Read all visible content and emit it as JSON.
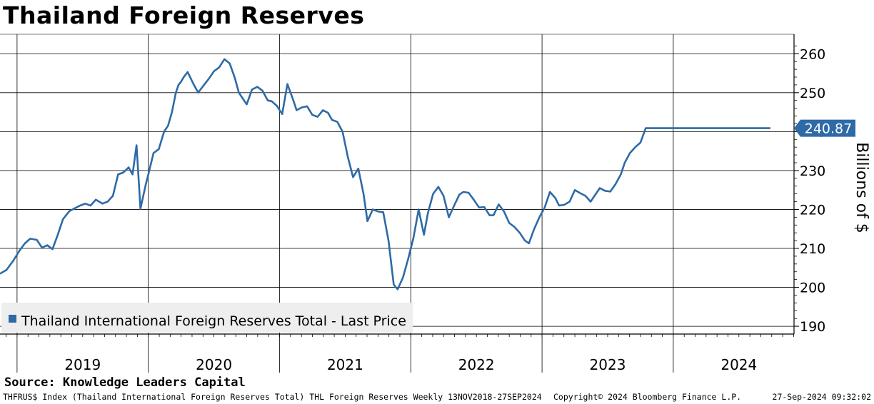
{
  "title": "Thailand Foreign Reserves",
  "source": "Source: Knowledge Leaders Capital",
  "footer": {
    "index_info": "THFRUS$ Index (Thailand International Foreign Reserves Total) THL Foreign Reserves  Weekly 13NOV2018-27SEP2024",
    "copyright": "Copyright© 2024 Bloomberg Finance L.P.",
    "timestamp": "27-Sep-2024 09:32:02"
  },
  "colors": {
    "line": "#2e6aa6",
    "last_price_box": "#2e6aa6",
    "legend_bg": "#eeeeee",
    "grid": "#000000"
  },
  "chart_data": {
    "type": "line",
    "ylabel": "Billions of $",
    "ylim": [
      188,
      265
    ],
    "yticks": [
      190,
      200,
      210,
      220,
      230,
      240,
      250,
      260
    ],
    "x_start": 2018.87,
    "x_end": 2024.92,
    "year_labels": [
      "2019",
      "2020",
      "2021",
      "2022",
      "2023",
      "2024"
    ],
    "last_value_label": "240.87",
    "series": [
      {
        "name": "Thailand International Foreign Reserves Total - Last Price",
        "x": [
          2018.87,
          2018.92,
          2018.97,
          2019.02,
          2019.06,
          2019.1,
          2019.15,
          2019.19,
          2019.23,
          2019.27,
          2019.31,
          2019.35,
          2019.4,
          2019.44,
          2019.48,
          2019.52,
          2019.56,
          2019.6,
          2019.65,
          2019.69,
          2019.73,
          2019.77,
          2019.81,
          2019.85,
          2019.88,
          2019.91,
          2019.94,
          2019.98,
          2020.0,
          2020.04,
          2020.08,
          2020.12,
          2020.15,
          2020.18,
          2020.21,
          2020.23,
          2020.25,
          2020.27,
          2020.3,
          2020.34,
          2020.38,
          2020.42,
          2020.46,
          2020.5,
          2020.54,
          2020.58,
          2020.62,
          2020.66,
          2020.69,
          2020.72,
          2020.75,
          2020.79,
          2020.83,
          2020.87,
          2020.91,
          2020.94,
          2020.98,
          2021.02,
          2021.06,
          2021.1,
          2021.13,
          2021.17,
          2021.21,
          2021.25,
          2021.29,
          2021.33,
          2021.37,
          2021.4,
          2021.44,
          2021.48,
          2021.52,
          2021.56,
          2021.6,
          2021.64,
          2021.67,
          2021.71,
          2021.75,
          2021.79,
          2021.83,
          2021.87,
          2021.9,
          2021.94,
          2021.98,
          2022.02,
          2022.06,
          2022.1,
          2022.13,
          2022.17,
          2022.21,
          2022.25,
          2022.29,
          2022.33,
          2022.37,
          2022.4,
          2022.44,
          2022.48,
          2022.52,
          2022.56,
          2022.6,
          2022.63,
          2022.67,
          2022.71,
          2022.75,
          2022.79,
          2022.83,
          2022.87,
          2022.9,
          2022.94,
          2022.98,
          2023.02,
          2023.06,
          2023.1,
          2023.13,
          2023.17,
          2023.21,
          2023.25,
          2023.29,
          2023.33,
          2023.37,
          2023.4,
          2023.44,
          2023.48,
          2023.52,
          2023.56,
          2023.6,
          2023.63,
          2023.67,
          2023.71,
          2023.75,
          2023.79,
          2023.83,
          2023.87,
          2023.9,
          2023.94,
          2023.98,
          2024.02,
          2024.06,
          2024.1,
          2024.13,
          2024.17,
          2024.21,
          2024.25,
          2024.29,
          2024.33,
          2024.37,
          2024.4,
          2024.44,
          2024.48,
          2024.52,
          2024.56,
          2024.6,
          2024.63,
          2024.67,
          2024.71,
          2024.74
        ],
        "values": [
          203.5,
          204.5,
          206.8,
          209.5,
          211.3,
          212.5,
          212.2,
          210.2,
          210.8,
          209.8,
          213.5,
          217.5,
          219.6,
          220.3,
          221.0,
          221.5,
          221.0,
          222.5,
          221.5,
          222.0,
          223.5,
          229.0,
          229.5,
          230.8,
          229.0,
          236.5,
          220.2,
          226.3,
          229.0,
          234.5,
          235.5,
          240.0,
          241.5,
          245.0,
          250.0,
          252.0,
          252.8,
          254.0,
          255.3,
          252.5,
          250.0,
          251.8,
          253.5,
          255.5,
          256.5,
          258.6,
          257.5,
          253.7,
          250.0,
          248.5,
          247.0,
          250.8,
          251.5,
          250.5,
          248.0,
          247.8,
          246.6,
          244.5,
          252.2,
          248.5,
          245.5,
          246.2,
          246.5,
          244.3,
          243.8,
          245.5,
          244.8,
          243.0,
          242.5,
          240.0,
          233.5,
          228.3,
          230.5,
          224.0,
          217.0,
          220.0,
          219.5,
          219.3,
          212.0,
          200.7,
          199.5,
          202.5,
          207.3,
          212.7,
          220.0,
          213.5,
          219.0,
          224.0,
          225.8,
          223.5,
          218.0,
          221.0,
          223.8,
          224.5,
          224.3,
          222.5,
          220.5,
          220.6,
          218.5,
          218.5,
          221.3,
          219.5,
          216.5,
          215.5,
          214.0,
          212.0,
          211.3,
          215.0,
          218.0,
          220.5,
          224.5,
          223.0,
          221.0,
          221.2,
          222.0,
          225.0,
          224.2,
          223.5,
          222.0,
          223.5,
          225.5,
          224.8,
          224.6,
          226.5,
          229.0,
          232.0,
          234.5,
          236.0,
          237.2,
          240.87,
          240.87,
          240.87,
          240.87,
          240.87,
          240.87,
          240.87,
          240.87,
          240.87,
          240.87,
          240.87,
          240.87,
          240.87,
          240.87,
          240.87,
          240.87,
          240.87,
          240.87,
          240.87,
          240.87,
          240.87,
          240.87,
          240.87,
          240.87,
          240.87,
          240.87
        ]
      }
    ],
    "legend_placement": "bottom-left",
    "grid": true
  }
}
